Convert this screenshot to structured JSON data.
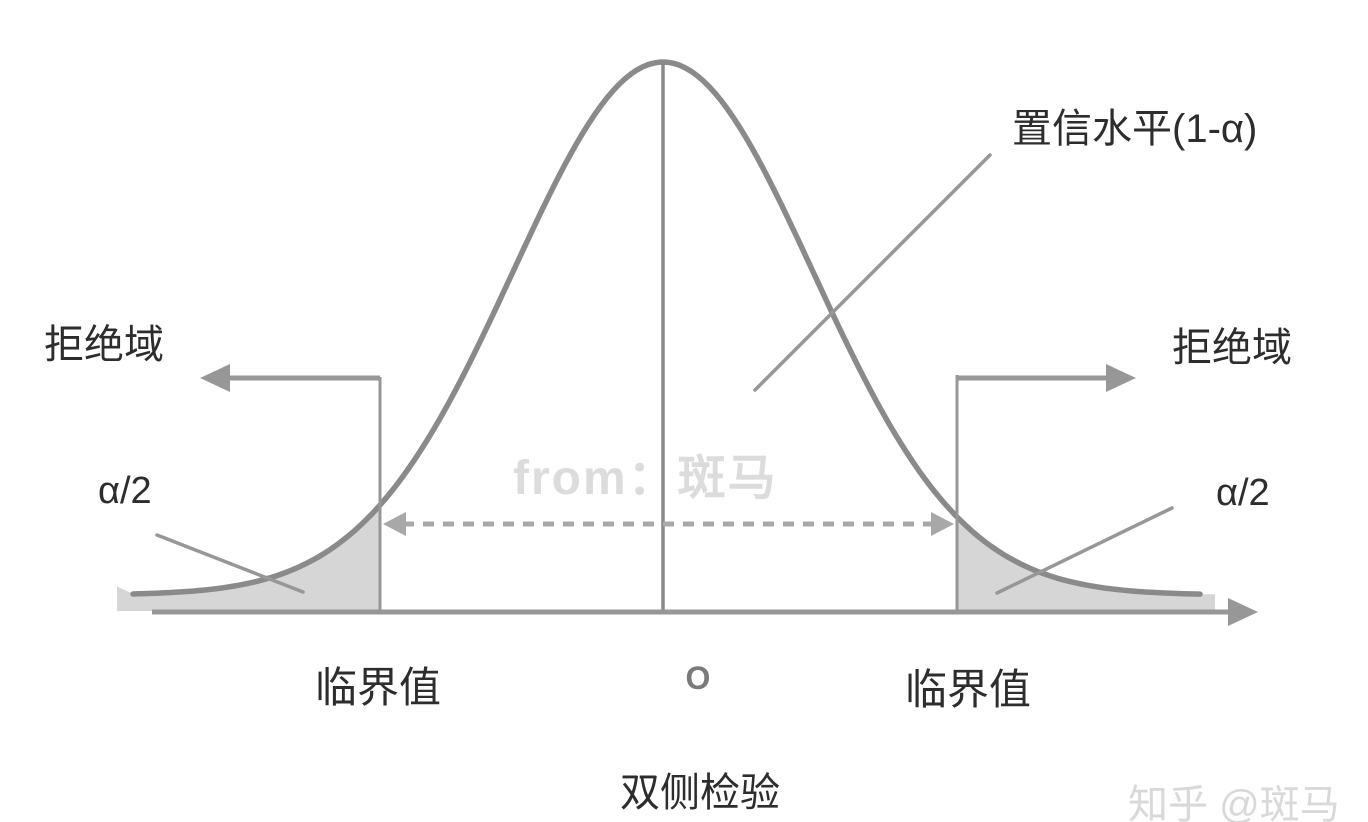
{
  "diagram": {
    "title": "双侧检验",
    "labels": {
      "rejection_left": "拒绝域",
      "rejection_right": "拒绝域",
      "confidence": "置信水平(1-α)",
      "alpha_left": "α/2",
      "alpha_right": "α/2",
      "critical_left": "临界值",
      "critical_right": "临界值",
      "origin": "O"
    },
    "watermarks": {
      "center": "from：斑马",
      "corner": "知乎 @斑马"
    },
    "colors": {
      "curve": "#8a8a8a",
      "line": "#979797",
      "dashed": "#a8a8a8",
      "fill": "#d6d6d6",
      "text": "#2d2d2d",
      "watermark_center": "#dcdcdc",
      "watermark_corner": "#d9d9d9"
    }
  }
}
